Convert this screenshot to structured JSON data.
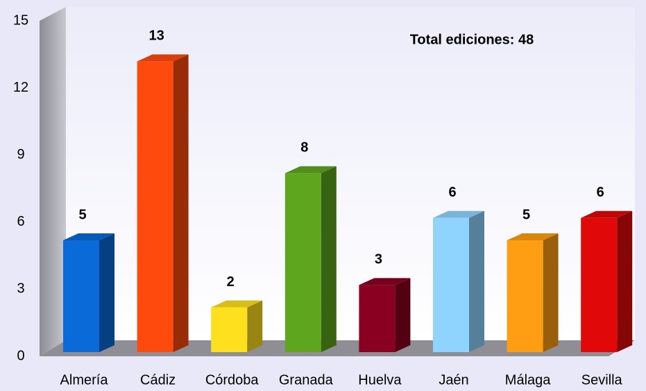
{
  "chart_data": {
    "type": "bar",
    "annotation": "Total ediciones: 48",
    "categories": [
      "Almería",
      "Cádiz",
      "Córdoba",
      "Granada",
      "Huelva",
      "Jaén",
      "Málaga",
      "Sevilla"
    ],
    "values": [
      5,
      13,
      2,
      8,
      3,
      6,
      5,
      6
    ],
    "colors": [
      "#0a6ad8",
      "#ff4a0e",
      "#ffe01e",
      "#5ea61e",
      "#8a0020",
      "#8fd4ff",
      "#ff9e12",
      "#e00808"
    ],
    "ylim": [
      0,
      15
    ],
    "yticks": [
      0,
      3,
      6,
      9,
      12,
      15
    ],
    "grid": false
  }
}
